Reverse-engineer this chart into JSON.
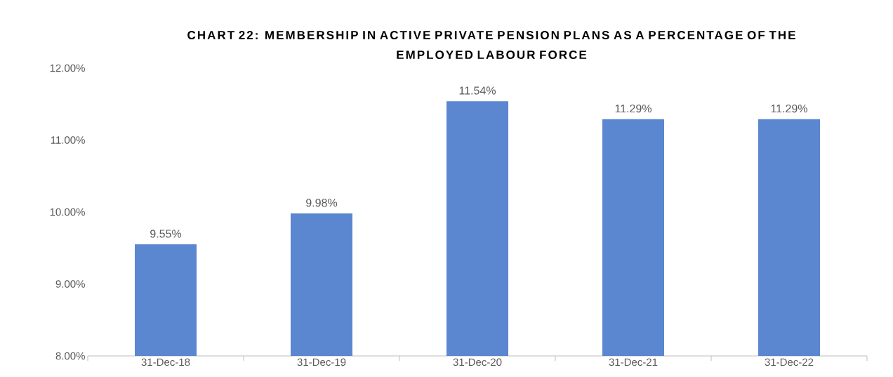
{
  "chart_data": {
    "type": "bar",
    "title": "CHART 22: MEMBERSHIP IN ACTIVE PRIVATE PENSION PLANS AS A PERCENTAGE OF THE EMPLOYED LABOUR FORCE",
    "categories": [
      "31-Dec-18",
      "31-Dec-19",
      "31-Dec-20",
      "31-Dec-21",
      "31-Dec-22"
    ],
    "values": [
      9.55,
      9.98,
      11.54,
      11.29,
      11.29
    ],
    "value_labels": [
      "9.55%",
      "9.98%",
      "11.54%",
      "11.29%",
      "11.29%"
    ],
    "color": "#5b86d0",
    "ylim": [
      8,
      12
    ],
    "yticks": [
      {
        "value": 8,
        "label": "8.00%"
      },
      {
        "value": 9,
        "label": "9.00%"
      },
      {
        "value": 10,
        "label": "10.00%"
      },
      {
        "value": 11,
        "label": "11.00%"
      },
      {
        "value": 12,
        "label": "12.00%"
      }
    ],
    "grid": false
  }
}
